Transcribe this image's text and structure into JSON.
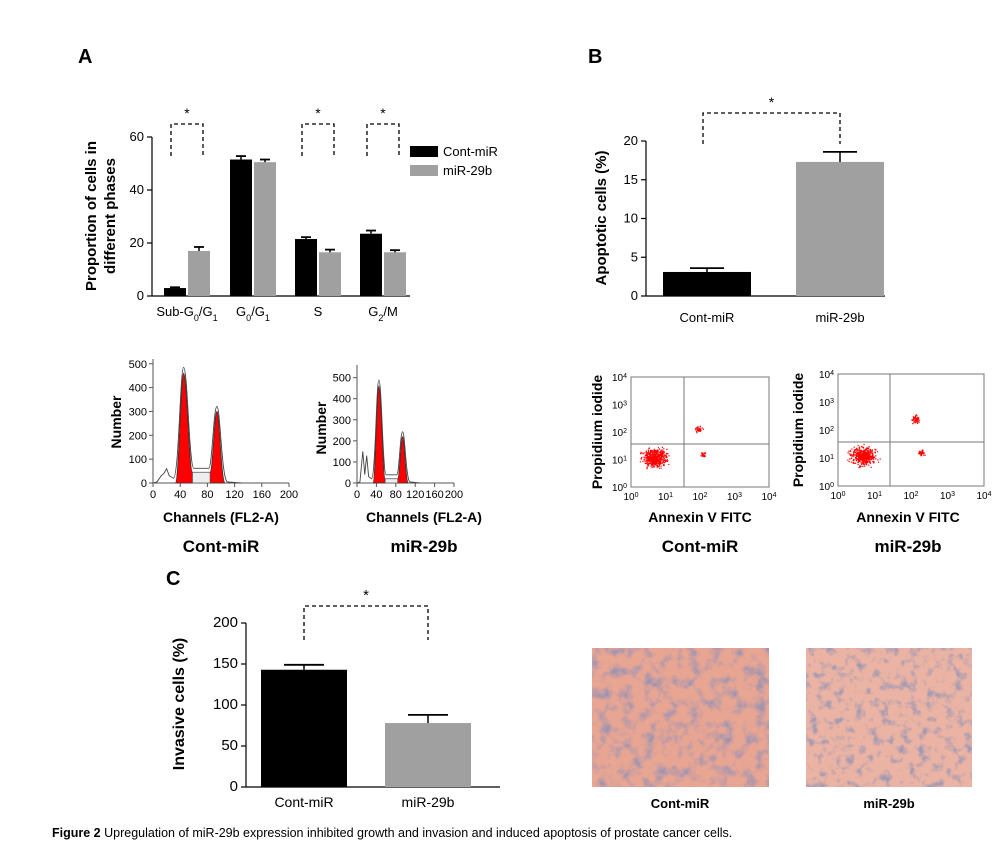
{
  "panel_labels": {
    "a": "A",
    "b": "B",
    "c": "C"
  },
  "colors": {
    "cont": "#000000",
    "mir": "#a0a0a0",
    "flow": "#ff0000"
  },
  "chart_data": [
    {
      "id": "A",
      "type": "bar",
      "ylabel_line1": "Proportion of cells in",
      "ylabel_line2": "different phases",
      "ylim": [
        0,
        60
      ],
      "yticks": [
        0,
        20,
        40,
        60
      ],
      "categories": [
        "Sub-G0/G1",
        "G0/G1",
        "S",
        "G2/M"
      ],
      "cat_parts": [
        {
          "t1": "Sub-G",
          "s1": "0",
          "t2": "/G",
          "s2": "1"
        },
        {
          "t1": "G",
          "s1": "0",
          "t2": "/G",
          "s2": "1"
        },
        {
          "t1": "S",
          "s1": "",
          "t2": "",
          "s2": ""
        },
        {
          "t1": "G",
          "s1": "2",
          "t2": "/M",
          "s2": ""
        }
      ],
      "series": [
        {
          "name": "Cont-miR",
          "values": [
            3,
            51.5,
            21.5,
            23.5
          ],
          "errors": [
            0.3,
            1.3,
            0.7,
            1.2
          ]
        },
        {
          "name": "miR-29b",
          "values": [
            17,
            50.5,
            16.5,
            16.5
          ],
          "errors": [
            1.5,
            1.0,
            1.0,
            0.8
          ]
        }
      ],
      "significance": [
        {
          "cats": [
            0
          ],
          "label": "*"
        },
        {
          "cats": [
            2
          ],
          "label": "*"
        },
        {
          "cats": [
            3
          ],
          "label": "*"
        }
      ]
    },
    {
      "id": "B",
      "type": "bar",
      "ylabel": "Apoptotic cells (%)",
      "ylim": [
        0,
        20
      ],
      "yticks": [
        0,
        5,
        10,
        15,
        20
      ],
      "categories": [
        "Cont-miR",
        "miR-29b"
      ],
      "values": [
        3.1,
        17.3
      ],
      "errors": [
        0.5,
        1.3
      ],
      "significance_label": "*"
    },
    {
      "id": "C",
      "type": "bar",
      "ylabel": "Invasive cells (%)",
      "ylim": [
        0,
        200
      ],
      "yticks": [
        0,
        50,
        100,
        150,
        200
      ],
      "categories": [
        "Cont-miR",
        "miR-29b"
      ],
      "values": [
        143,
        78
      ],
      "errors": [
        6,
        10
      ],
      "significance_label": "*"
    }
  ],
  "histograms": {
    "ylabel": "Number",
    "xlabel": "Channels (FL2-A)",
    "xticks": [
      0,
      40,
      80,
      120,
      160,
      200
    ],
    "items": [
      {
        "title": "Cont-miR",
        "yticks": [
          0,
          100,
          200,
          300,
          400,
          500
        ],
        "ymax": 520,
        "peak1": 460,
        "peak2": 300
      },
      {
        "title": "miR-29b",
        "yticks": [
          0,
          100,
          200,
          300,
          400,
          500
        ],
        "ymax": 560,
        "peak1": 460,
        "peak2": 220
      }
    ]
  },
  "scatter": {
    "ylabel": "Propidium iodide",
    "xlabel": "Annexin V FITC",
    "ticks": [
      {
        "b": "10",
        "e": "0"
      },
      {
        "b": "10",
        "e": "1"
      },
      {
        "b": "10",
        "e": "2"
      },
      {
        "b": "10",
        "e": "3"
      },
      {
        "b": "10",
        "e": "4"
      }
    ],
    "items": [
      {
        "title": "Cont-miR"
      },
      {
        "title": "miR-29b"
      }
    ]
  },
  "micrographs": [
    {
      "label": "Cont-miR"
    },
    {
      "label": "miR-29b"
    }
  ],
  "caption": {
    "bold": "Figure 2",
    "text": " Upregulation of miR-29b expression inhibited growth and invasion and induced apoptosis of prostate cancer cells."
  }
}
